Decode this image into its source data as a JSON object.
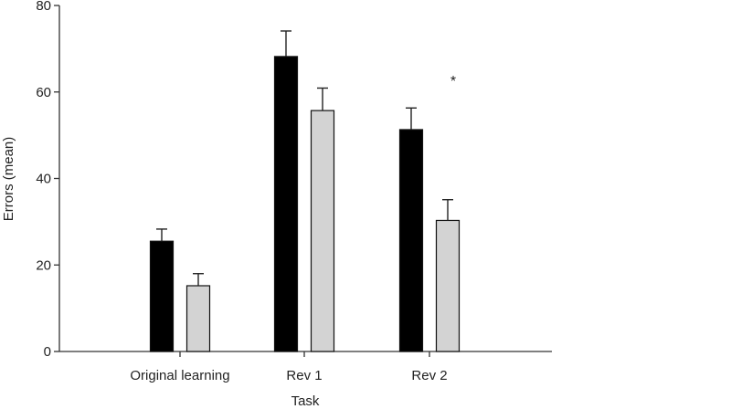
{
  "chart_data": {
    "type": "bar",
    "title": "",
    "xlabel": "Task",
    "ylabel": "Errors (mean)",
    "ylim": [
      0,
      80
    ],
    "yticks": [
      "0",
      "20",
      "40",
      "60",
      "80"
    ],
    "categories": [
      "Original learning",
      "Rev 1",
      "Rev 2"
    ],
    "series": [
      {
        "color": "#000000",
        "values": [
          25.5,
          68.2,
          51.3
        ],
        "errors": [
          2.8,
          5.9,
          5.0
        ]
      },
      {
        "color": "#d3d3d3",
        "values": [
          15.2,
          55.7,
          30.3
        ],
        "errors": [
          2.8,
          5.2,
          4.8
        ]
      }
    ],
    "annotations": [
      {
        "text": "*",
        "category": "Rev 2",
        "y": 64
      }
    ],
    "grid": false,
    "legend": "none"
  }
}
